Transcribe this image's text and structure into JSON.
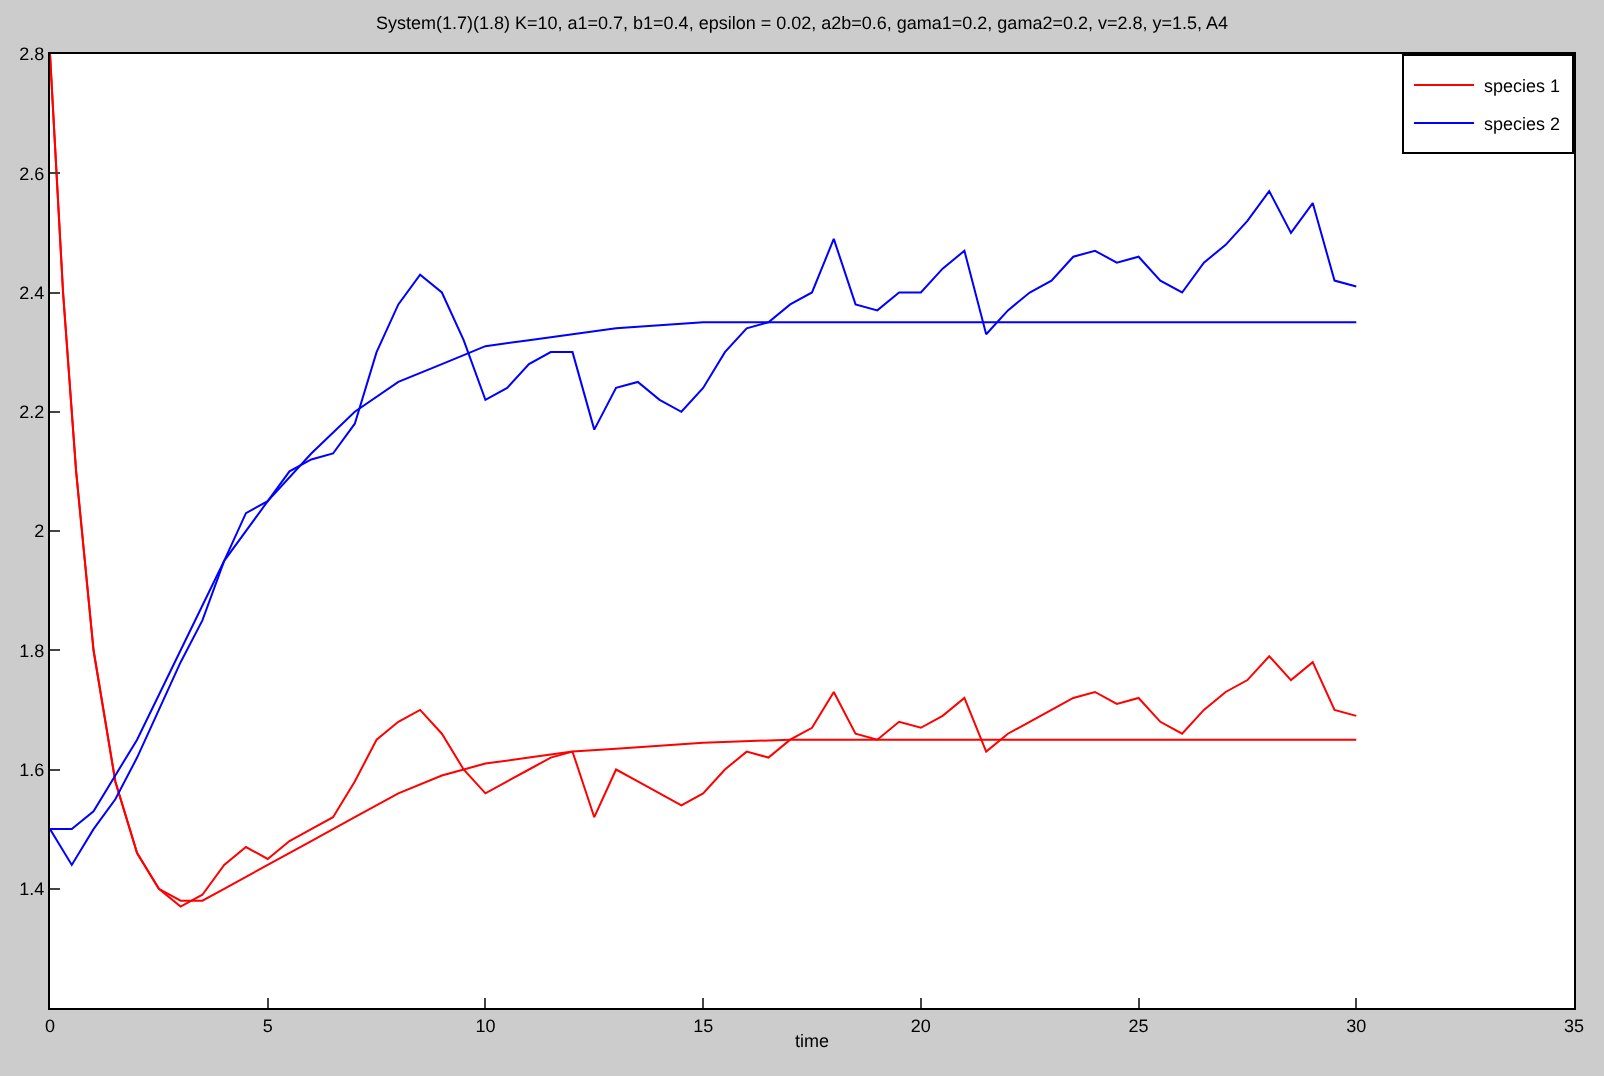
{
  "chart_data": {
    "type": "line",
    "title": "System(1.7)(1.8) K=10, a1=0.7, b1=0.4, epsilon = 0.02, a2b=0.6, gama1=0.2, gama2=0.2, v=2.8, y=1.5, A4",
    "xlabel": "time",
    "xlim": [
      0,
      35
    ],
    "xticks": [
      0,
      5,
      10,
      15,
      20,
      25,
      30,
      35
    ],
    "ylim": [
      1.2,
      2.8
    ],
    "yticks": [
      1.4,
      1.6,
      1.8,
      2,
      2.2,
      2.4,
      2.6,
      2.8
    ],
    "legend": "top right",
    "series": [
      {
        "name": "species 1",
        "color": "#ff0000",
        "x": [
          0,
          0.3,
          0.6,
          1,
          1.5,
          2,
          2.5,
          3,
          3.5,
          4,
          4.5,
          5,
          5.5,
          6,
          6.5,
          7,
          7.5,
          8,
          8.5,
          9,
          9.5,
          10,
          10.5,
          11,
          11.5,
          12,
          12.5,
          13,
          13.5,
          14,
          14.5,
          15,
          15.5,
          16,
          16.5,
          17,
          17.5,
          18,
          18.5,
          19,
          19.5,
          20,
          20.5,
          21,
          21.5,
          22,
          22.5,
          23,
          23.5,
          24,
          24.5,
          25,
          25.5,
          26,
          26.5,
          27,
          27.5,
          28,
          28.5,
          29,
          29.5,
          30
        ],
        "values": [
          2.8,
          2.4,
          2.1,
          1.8,
          1.58,
          1.46,
          1.4,
          1.37,
          1.39,
          1.44,
          1.47,
          1.45,
          1.48,
          1.5,
          1.52,
          1.58,
          1.65,
          1.68,
          1.7,
          1.66,
          1.6,
          1.56,
          1.58,
          1.6,
          1.62,
          1.63,
          1.52,
          1.6,
          1.58,
          1.56,
          1.54,
          1.56,
          1.6,
          1.63,
          1.62,
          1.65,
          1.67,
          1.73,
          1.66,
          1.65,
          1.68,
          1.67,
          1.69,
          1.72,
          1.63,
          1.66,
          1.68,
          1.7,
          1.72,
          1.73,
          1.71,
          1.72,
          1.68,
          1.66,
          1.7,
          1.73,
          1.75,
          1.79,
          1.75,
          1.78,
          1.7,
          1.69
        ]
      },
      {
        "color": "#ff0000",
        "x": [
          0,
          0.3,
          0.6,
          1,
          1.5,
          2,
          2.5,
          3,
          3.5,
          4,
          5,
          6,
          7,
          8,
          9,
          10,
          11,
          12,
          13,
          14,
          15,
          17,
          20,
          25,
          30
        ],
        "values": [
          2.8,
          2.4,
          2.1,
          1.8,
          1.58,
          1.46,
          1.4,
          1.38,
          1.38,
          1.4,
          1.44,
          1.48,
          1.52,
          1.56,
          1.59,
          1.61,
          1.62,
          1.63,
          1.635,
          1.64,
          1.645,
          1.65,
          1.65,
          1.65,
          1.65
        ]
      },
      {
        "name": "species 2",
        "color": "#0000ff",
        "x": [
          0,
          0.5,
          1,
          1.5,
          2,
          2.5,
          3,
          3.5,
          4,
          4.5,
          5,
          5.5,
          6,
          6.5,
          7,
          7.5,
          8,
          8.5,
          9,
          9.5,
          10,
          10.5,
          11,
          11.5,
          12,
          12.5,
          13,
          13.5,
          14,
          14.5,
          15,
          15.5,
          16,
          16.5,
          17,
          17.5,
          18,
          18.5,
          19,
          19.5,
          20,
          20.5,
          21,
          21.5,
          22,
          22.5,
          23,
          23.5,
          24,
          24.5,
          25,
          25.5,
          26,
          26.5,
          27,
          27.5,
          28,
          28.5,
          29,
          29.5,
          30
        ],
        "values": [
          1.5,
          1.44,
          1.5,
          1.55,
          1.62,
          1.7,
          1.78,
          1.85,
          1.95,
          2.03,
          2.05,
          2.1,
          2.12,
          2.13,
          2.18,
          2.3,
          2.38,
          2.43,
          2.4,
          2.32,
          2.22,
          2.24,
          2.28,
          2.3,
          2.3,
          2.17,
          2.24,
          2.25,
          2.22,
          2.2,
          2.24,
          2.3,
          2.34,
          2.35,
          2.38,
          2.4,
          2.49,
          2.38,
          2.37,
          2.4,
          2.4,
          2.44,
          2.47,
          2.33,
          2.37,
          2.4,
          2.42,
          2.46,
          2.47,
          2.45,
          2.46,
          2.42,
          2.4,
          2.45,
          2.48,
          2.52,
          2.57,
          2.5,
          2.55,
          2.42,
          2.41
        ]
      },
      {
        "color": "#0000ff",
        "x": [
          0,
          0.5,
          1,
          2,
          3,
          4,
          5,
          6,
          7,
          8,
          9,
          10,
          11,
          12,
          13,
          14,
          15,
          17,
          20,
          25,
          30
        ],
        "values": [
          1.5,
          1.5,
          1.53,
          1.65,
          1.8,
          1.95,
          2.05,
          2.13,
          2.2,
          2.25,
          2.28,
          2.31,
          2.32,
          2.33,
          2.34,
          2.345,
          2.35,
          2.35,
          2.35,
          2.35,
          2.35
        ]
      }
    ]
  }
}
